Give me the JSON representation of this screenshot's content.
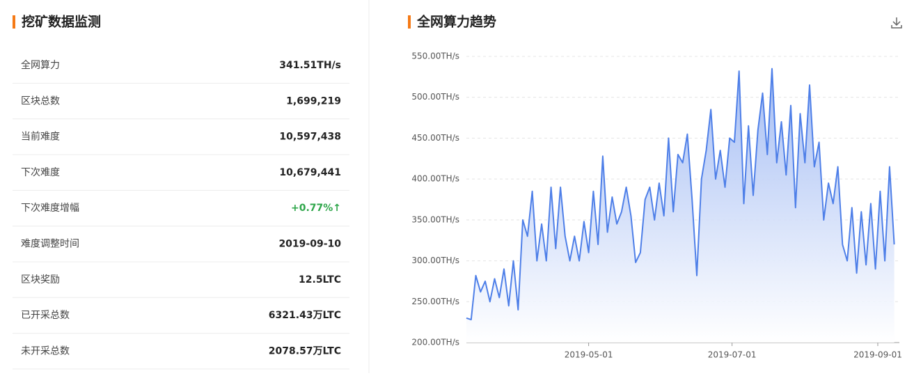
{
  "panel": {
    "title": "挖矿数据监测",
    "rows": [
      {
        "label": "全网算力",
        "value": "341.51TH/s"
      },
      {
        "label": "区块总数",
        "value": "1,699,219"
      },
      {
        "label": "当前难度",
        "value": "10,597,438"
      },
      {
        "label": "下次难度",
        "value": "10,679,441"
      },
      {
        "label": "下次难度增幅",
        "value": "+0.77%↑"
      },
      {
        "label": "难度调整时间",
        "value": "2019-09-10"
      },
      {
        "label": "区块奖励",
        "value": "12.5LTC"
      },
      {
        "label": "已开采总数",
        "value": "6321.43万LTC"
      },
      {
        "label": "未开采总数",
        "value": "2078.57万LTC"
      }
    ]
  },
  "chart_data": {
    "type": "area",
    "title": "全网算力趋势",
    "color": "#4e7fe8",
    "grid": true,
    "x": [
      "2019-03-10",
      "2019-03-12",
      "2019-03-14",
      "2019-03-16",
      "2019-03-18",
      "2019-03-20",
      "2019-03-22",
      "2019-03-24",
      "2019-03-26",
      "2019-03-28",
      "2019-03-30",
      "2019-04-01",
      "2019-04-03",
      "2019-04-05",
      "2019-04-07",
      "2019-04-09",
      "2019-04-11",
      "2019-04-13",
      "2019-04-15",
      "2019-04-17",
      "2019-04-19",
      "2019-04-21",
      "2019-04-23",
      "2019-04-25",
      "2019-04-27",
      "2019-04-29",
      "2019-05-01",
      "2019-05-03",
      "2019-05-05",
      "2019-05-07",
      "2019-05-09",
      "2019-05-11",
      "2019-05-13",
      "2019-05-15",
      "2019-05-17",
      "2019-05-19",
      "2019-05-21",
      "2019-05-23",
      "2019-05-25",
      "2019-05-27",
      "2019-05-29",
      "2019-05-31",
      "2019-06-02",
      "2019-06-04",
      "2019-06-06",
      "2019-06-08",
      "2019-06-10",
      "2019-06-12",
      "2019-06-14",
      "2019-06-16",
      "2019-06-18",
      "2019-06-20",
      "2019-06-22",
      "2019-06-24",
      "2019-06-26",
      "2019-06-28",
      "2019-06-30",
      "2019-07-02",
      "2019-07-04",
      "2019-07-06",
      "2019-07-08",
      "2019-07-10",
      "2019-07-12",
      "2019-07-14",
      "2019-07-16",
      "2019-07-18",
      "2019-07-20",
      "2019-07-22",
      "2019-07-24",
      "2019-07-26",
      "2019-07-28",
      "2019-07-30",
      "2019-08-01",
      "2019-08-03",
      "2019-08-05",
      "2019-08-07",
      "2019-08-09",
      "2019-08-11",
      "2019-08-13",
      "2019-08-15",
      "2019-08-17",
      "2019-08-19",
      "2019-08-21",
      "2019-08-23",
      "2019-08-25",
      "2019-08-27",
      "2019-08-29",
      "2019-08-31",
      "2019-09-02",
      "2019-09-04",
      "2019-09-06",
      "2019-09-08"
    ],
    "values": [
      230,
      228,
      282,
      262,
      275,
      250,
      278,
      255,
      290,
      245,
      300,
      240,
      350,
      330,
      385,
      300,
      345,
      300,
      390,
      315,
      390,
      330,
      300,
      330,
      300,
      348,
      310,
      385,
      320,
      428,
      335,
      378,
      345,
      360,
      390,
      355,
      298,
      310,
      375,
      390,
      350,
      395,
      355,
      450,
      360,
      430,
      420,
      455,
      375,
      282,
      400,
      435,
      485,
      400,
      435,
      390,
      450,
      445,
      532,
      370,
      465,
      380,
      460,
      505,
      430,
      535,
      420,
      470,
      405,
      490,
      365,
      480,
      420,
      515,
      415,
      445,
      350,
      395,
      370,
      415,
      320,
      300,
      365,
      285,
      360,
      295,
      370,
      290,
      385,
      300,
      415,
      320
    ],
    "xlim": [
      "2019-03-10",
      "2019-09-09"
    ],
    "xticks": [
      "2019-05-01",
      "2019-07-01",
      "2019-09-01"
    ],
    "ylim": [
      200,
      550
    ],
    "yticks": [
      {
        "value": 200,
        "label": "200.00TH/s"
      },
      {
        "value": 250,
        "label": "250.00TH/s"
      },
      {
        "value": 300,
        "label": "300.00TH/s"
      },
      {
        "value": 350,
        "label": "350.00TH/s"
      },
      {
        "value": 400,
        "label": "400.00TH/s"
      },
      {
        "value": 450,
        "label": "450.00TH/s"
      },
      {
        "value": 500,
        "label": "500.00TH/s"
      },
      {
        "value": 550,
        "label": "550.00TH/s"
      }
    ]
  }
}
